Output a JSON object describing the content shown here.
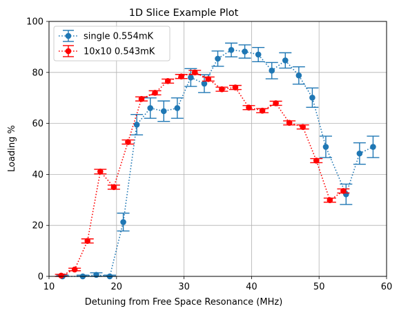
{
  "chart_data": {
    "type": "scatter",
    "title": "1D Slice Example Plot",
    "xlabel": "Detuning from Free Space Resonance (MHz)",
    "ylabel": "Loading %",
    "xlim": [
      10,
      60
    ],
    "ylim": [
      0,
      100
    ],
    "xticks": [
      "10",
      "20",
      "30",
      "40",
      "50",
      "60"
    ],
    "yticks": [
      "0",
      "20",
      "40",
      "60",
      "80",
      "100"
    ],
    "grid": true,
    "legend_position": "top-left",
    "series": [
      {
        "name": "single 0.554mK",
        "color": "#1f77b4",
        "marker": "circle",
        "line": "dotted",
        "x": [
          12,
          15,
          17,
          19,
          21,
          23,
          25,
          27,
          29,
          31,
          33,
          35,
          37,
          39,
          41,
          43,
          45,
          47,
          49,
          51,
          54,
          56,
          58
        ],
        "y": [
          0,
          0,
          0.6,
          0,
          21.3,
          59.5,
          66.0,
          64.8,
          66.0,
          78.0,
          75.6,
          85.4,
          88.8,
          88.2,
          87.0,
          80.7,
          84.7,
          78.8,
          70.1,
          50.8,
          32.2,
          48.2,
          50.8
        ],
        "yerr": [
          0.5,
          0.5,
          0.8,
          0.5,
          3.5,
          4.0,
          4.0,
          4.0,
          4.0,
          3.5,
          3.5,
          3.0,
          2.7,
          2.6,
          2.8,
          3.2,
          3.0,
          3.4,
          3.8,
          4.2,
          4.0,
          4.2,
          4.2
        ]
      },
      {
        "name": "10x10 0.543mK",
        "color": "#ff0000",
        "marker": "circle",
        "line": "dotted",
        "x": [
          11.8,
          13.8,
          15.7,
          17.6,
          19.6,
          21.7,
          23.7,
          25.7,
          27.6,
          29.6,
          31.6,
          33.6,
          35.6,
          37.6,
          39.6,
          41.6,
          43.6,
          45.6,
          47.6,
          49.6,
          51.6,
          53.6
        ],
        "y": [
          0.3,
          2.7,
          13.9,
          41.1,
          35.0,
          52.7,
          69.6,
          72.0,
          76.6,
          78.4,
          80.0,
          77.4,
          73.4,
          74.1,
          66.2,
          65.0,
          67.9,
          60.2,
          58.6,
          45.4,
          29.9,
          33.5
        ],
        "yerr": [
          0.5,
          0.5,
          0.8,
          0.9,
          0.8,
          0.8,
          0.8,
          0.8,
          0.8,
          0.8,
          0.8,
          0.8,
          0.8,
          0.8,
          0.8,
          0.8,
          0.8,
          0.8,
          0.8,
          0.8,
          0.8,
          0.8
        ]
      }
    ]
  }
}
